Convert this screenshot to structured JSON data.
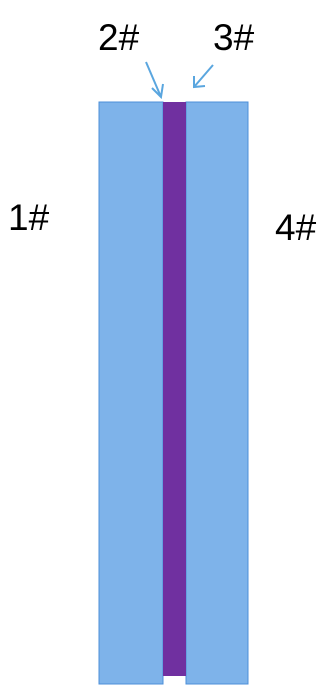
{
  "labels": {
    "left_outer": "1#",
    "left_inner": "2#",
    "right_inner": "3#",
    "right_outer": "4#"
  },
  "colors": {
    "outer_layer": "#7eb3ea",
    "outer_border": "#4c8fd8",
    "inner_layer": "#7030a0",
    "arrow": "#5aa6df"
  }
}
